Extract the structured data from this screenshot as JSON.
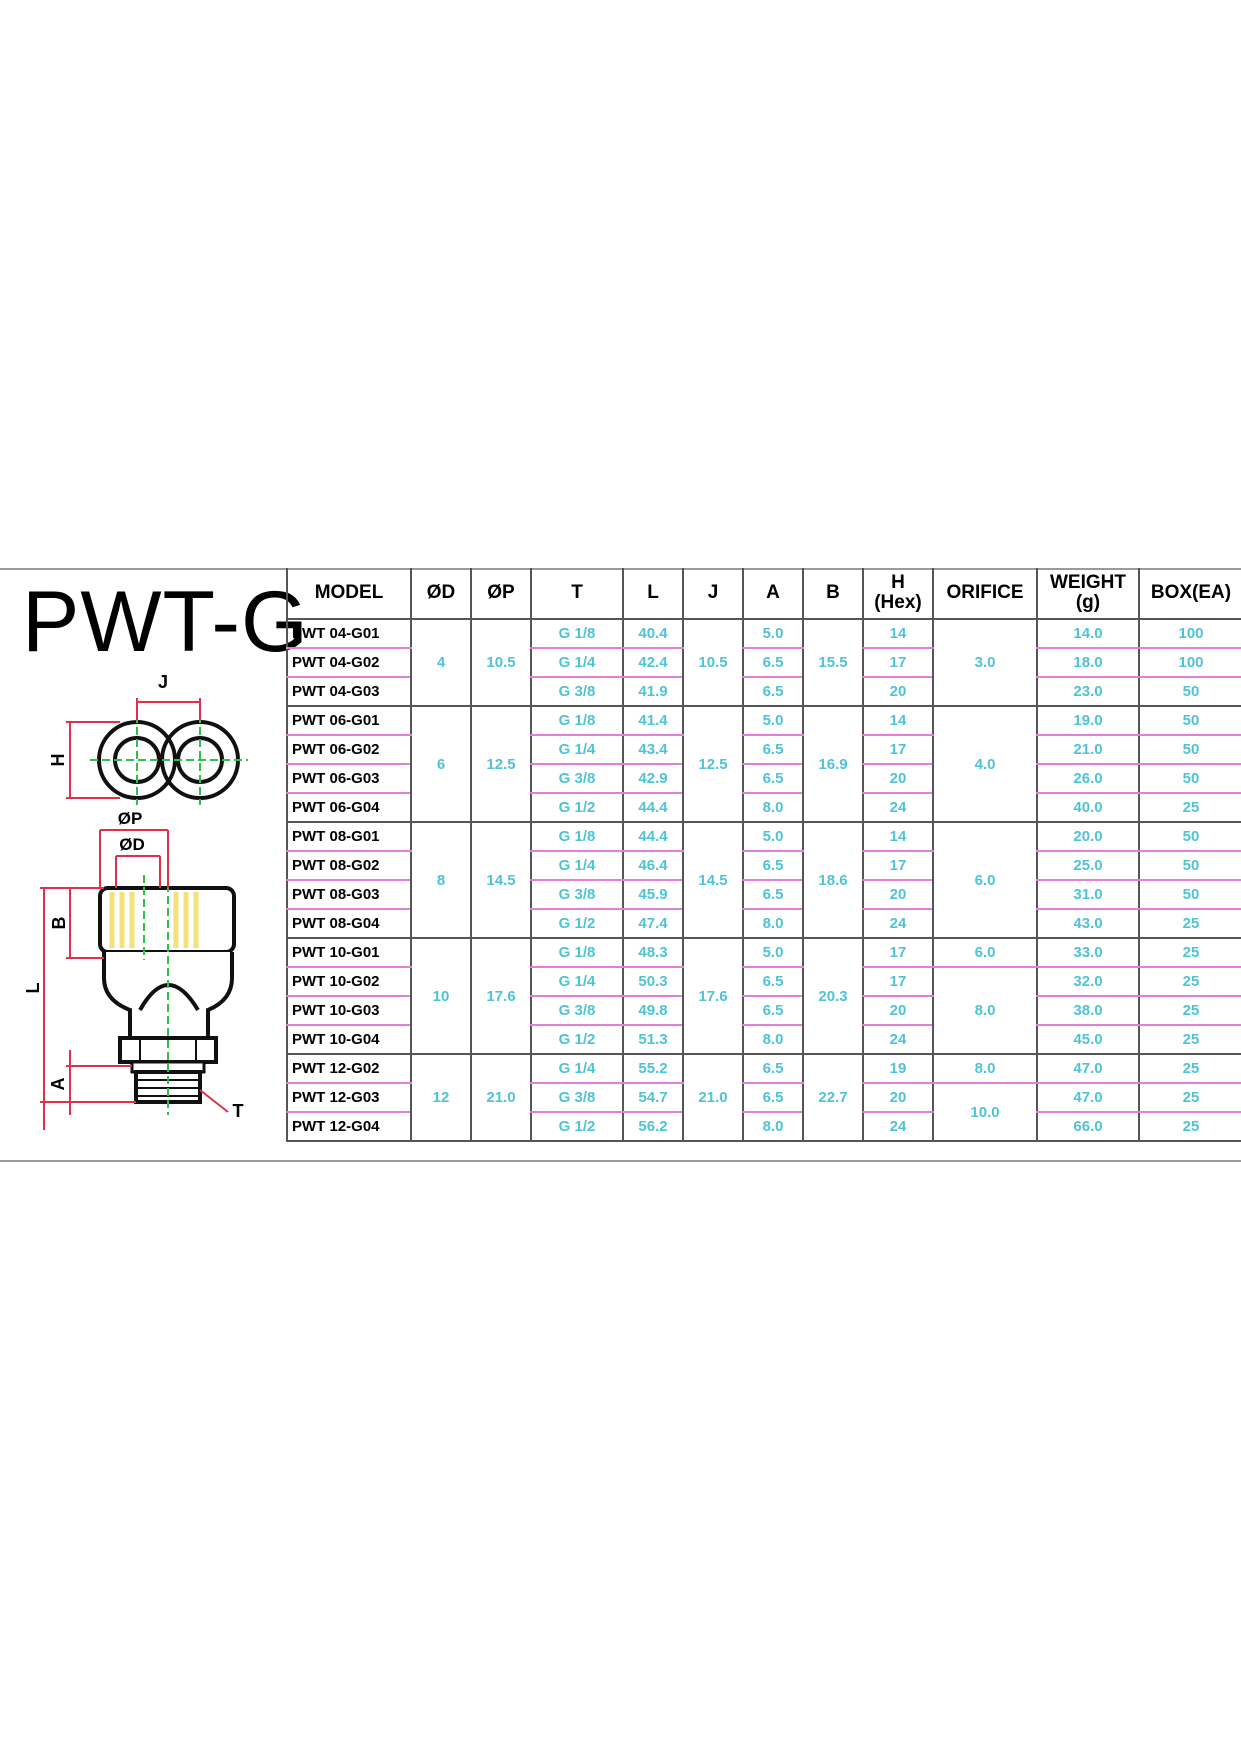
{
  "title": "PWT-G",
  "drawing": {
    "labels": {
      "J": "J",
      "H": "H",
      "OP": "ØP",
      "OD": "ØD",
      "B": "B",
      "L": "L",
      "A": "A",
      "T": "T"
    },
    "colors": {
      "dimension": "#e0304a",
      "centerline": "#2fbf4a",
      "threads": "#f3e27a",
      "outline": "#111111"
    }
  },
  "colors": {
    "value_text": "#4fc3d6",
    "row_rule": "#e27fd8",
    "grid": "#555555",
    "frame": "#9a9a9a"
  },
  "headers": {
    "model": "MODEL",
    "od": "ØD",
    "op": "ØP",
    "t": "T",
    "l": "L",
    "j": "J",
    "a": "A",
    "b": "B",
    "h1": "H",
    "h2": "(Hex)",
    "orifice": "ORIFICE",
    "weight1": "WEIGHT",
    "weight2": "(g)",
    "box": "BOX(EA)"
  },
  "groups": [
    {
      "od": "4",
      "op": "10.5",
      "j": "10.5",
      "b": "15.5",
      "rows": [
        {
          "model": "PWT 04-G01",
          "t": "G 1/8",
          "l": "40.4",
          "a": "5.0",
          "h": "14",
          "weight": "14.0",
          "box": "100"
        },
        {
          "model": "PWT 04-G02",
          "t": "G 1/4",
          "l": "42.4",
          "a": "6.5",
          "h": "17",
          "weight": "18.0",
          "box": "100"
        },
        {
          "model": "PWT 04-G03",
          "t": "G 3/8",
          "l": "41.9",
          "a": "6.5",
          "h": "20",
          "weight": "23.0",
          "box": "50"
        }
      ],
      "orifice": [
        {
          "value": "3.0",
          "span": 3
        }
      ]
    },
    {
      "od": "6",
      "op": "12.5",
      "j": "12.5",
      "b": "16.9",
      "rows": [
        {
          "model": "PWT 06-G01",
          "t": "G 1/8",
          "l": "41.4",
          "a": "5.0",
          "h": "14",
          "weight": "19.0",
          "box": "50"
        },
        {
          "model": "PWT 06-G02",
          "t": "G 1/4",
          "l": "43.4",
          "a": "6.5",
          "h": "17",
          "weight": "21.0",
          "box": "50"
        },
        {
          "model": "PWT 06-G03",
          "t": "G 3/8",
          "l": "42.9",
          "a": "6.5",
          "h": "20",
          "weight": "26.0",
          "box": "50"
        },
        {
          "model": "PWT 06-G04",
          "t": "G 1/2",
          "l": "44.4",
          "a": "8.0",
          "h": "24",
          "weight": "40.0",
          "box": "25"
        }
      ],
      "orifice": [
        {
          "value": "4.0",
          "span": 4
        }
      ]
    },
    {
      "od": "8",
      "op": "14.5",
      "j": "14.5",
      "b": "18.6",
      "rows": [
        {
          "model": "PWT 08-G01",
          "t": "G 1/8",
          "l": "44.4",
          "a": "5.0",
          "h": "14",
          "weight": "20.0",
          "box": "50"
        },
        {
          "model": "PWT 08-G02",
          "t": "G 1/4",
          "l": "46.4",
          "a": "6.5",
          "h": "17",
          "weight": "25.0",
          "box": "50"
        },
        {
          "model": "PWT 08-G03",
          "t": "G 3/8",
          "l": "45.9",
          "a": "6.5",
          "h": "20",
          "weight": "31.0",
          "box": "50"
        },
        {
          "model": "PWT 08-G04",
          "t": "G 1/2",
          "l": "47.4",
          "a": "8.0",
          "h": "24",
          "weight": "43.0",
          "box": "25"
        }
      ],
      "orifice": [
        {
          "value": "6.0",
          "span": 4
        }
      ]
    },
    {
      "od": "10",
      "op": "17.6",
      "j": "17.6",
      "b": "20.3",
      "rows": [
        {
          "model": "PWT 10-G01",
          "t": "G 1/8",
          "l": "48.3",
          "a": "5.0",
          "h": "17",
          "weight": "33.0",
          "box": "25"
        },
        {
          "model": "PWT 10-G02",
          "t": "G 1/4",
          "l": "50.3",
          "a": "6.5",
          "h": "17",
          "weight": "32.0",
          "box": "25"
        },
        {
          "model": "PWT 10-G03",
          "t": "G 3/8",
          "l": "49.8",
          "a": "6.5",
          "h": "20",
          "weight": "38.0",
          "box": "25"
        },
        {
          "model": "PWT 10-G04",
          "t": "G 1/2",
          "l": "51.3",
          "a": "8.0",
          "h": "24",
          "weight": "45.0",
          "box": "25"
        }
      ],
      "orifice": [
        {
          "value": "6.0",
          "span": 1
        },
        {
          "value": "8.0",
          "span": 3
        }
      ]
    },
    {
      "od": "12",
      "op": "21.0",
      "j": "21.0",
      "b": "22.7",
      "rows": [
        {
          "model": "PWT 12-G02",
          "t": "G 1/4",
          "l": "55.2",
          "a": "6.5",
          "h": "19",
          "weight": "47.0",
          "box": "25"
        },
        {
          "model": "PWT 12-G03",
          "t": "G 3/8",
          "l": "54.7",
          "a": "6.5",
          "h": "20",
          "weight": "47.0",
          "box": "25"
        },
        {
          "model": "PWT 12-G04",
          "t": "G 1/2",
          "l": "56.2",
          "a": "8.0",
          "h": "24",
          "weight": "66.0",
          "box": "25"
        }
      ],
      "orifice": [
        {
          "value": "8.0",
          "span": 1
        },
        {
          "value": "10.0",
          "span": 2
        }
      ]
    }
  ]
}
